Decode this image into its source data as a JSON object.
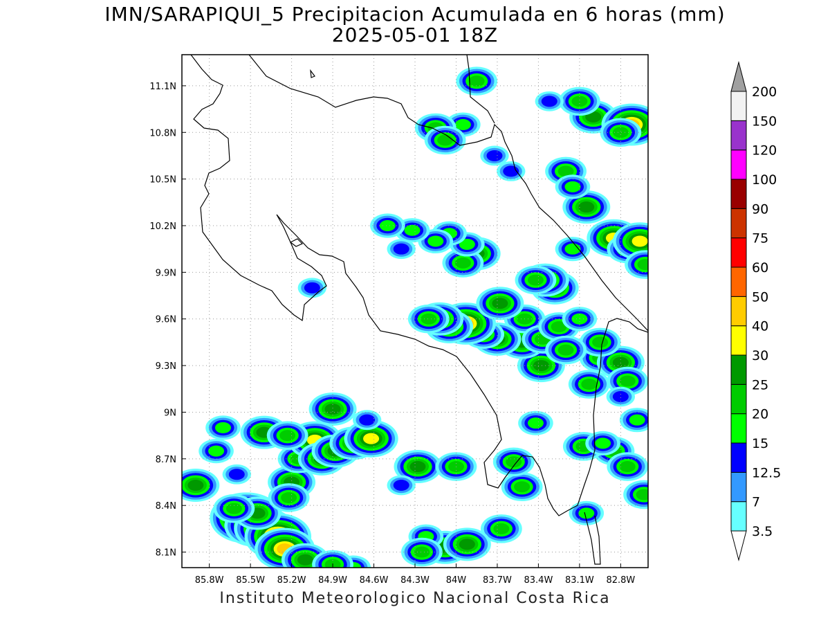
{
  "title_line1": "IMN/SARAPIQUI_5 Precipitacion Acumulada en 6 horas (mm)",
  "title_line2": "2025-05-01 18Z",
  "credit": "Instituto Meteorologico Nacional Costa Rica",
  "map": {
    "lon_range": [
      -86.0,
      -82.6
    ],
    "lat_range": [
      8.0,
      11.3
    ],
    "lon_ticks": [
      "85.8W",
      "85.5W",
      "85.2W",
      "84.9W",
      "84.6W",
      "84.3W",
      "84W",
      "83.7W",
      "83.4W",
      "83.1W",
      "82.8W"
    ],
    "lat_ticks": [
      "8.1N",
      "8.4N",
      "8.7N",
      "9N",
      "9.3N",
      "9.6N",
      "9.9N",
      "10.2N",
      "10.5N",
      "10.8N",
      "11.1N"
    ],
    "grid": true,
    "cells": [
      {
        "lon": -85.53,
        "lat": 8.32,
        "level": 10
      },
      {
        "lon": -85.47,
        "lat": 8.27,
        "level": 8
      },
      {
        "lon": -85.4,
        "lat": 8.25,
        "level": 8
      },
      {
        "lon": -85.3,
        "lat": 8.2,
        "level": 9
      },
      {
        "lon": -85.25,
        "lat": 8.12,
        "level": 8
      },
      {
        "lon": -85.1,
        "lat": 8.05,
        "level": 6
      },
      {
        "lon": -85.45,
        "lat": 8.35,
        "level": 6
      },
      {
        "lon": -85.62,
        "lat": 8.38,
        "level": 5
      },
      {
        "lon": -85.9,
        "lat": 8.53,
        "level": 6
      },
      {
        "lon": -85.2,
        "lat": 8.55,
        "level": 6
      },
      {
        "lon": -85.22,
        "lat": 8.45,
        "level": 5
      },
      {
        "lon": -85.15,
        "lat": 8.7,
        "level": 5
      },
      {
        "lon": -85.03,
        "lat": 8.82,
        "level": 7
      },
      {
        "lon": -84.98,
        "lat": 8.7,
        "level": 6
      },
      {
        "lon": -84.88,
        "lat": 8.75,
        "level": 6
      },
      {
        "lon": -84.75,
        "lat": 8.8,
        "level": 6
      },
      {
        "lon": -84.62,
        "lat": 8.83,
        "level": 7
      },
      {
        "lon": -84.9,
        "lat": 9.02,
        "level": 6
      },
      {
        "lon": -85.4,
        "lat": 8.87,
        "level": 6
      },
      {
        "lon": -85.23,
        "lat": 8.85,
        "level": 5
      },
      {
        "lon": -84.28,
        "lat": 8.65,
        "level": 6
      },
      {
        "lon": -84.0,
        "lat": 8.65,
        "level": 5
      },
      {
        "lon": -83.67,
        "lat": 8.25,
        "level": 5
      },
      {
        "lon": -84.08,
        "lat": 8.13,
        "level": 6
      },
      {
        "lon": -83.92,
        "lat": 8.15,
        "level": 6
      },
      {
        "lon": -84.22,
        "lat": 8.2,
        "level": 4
      },
      {
        "lon": -84.25,
        "lat": 8.1,
        "level": 5
      },
      {
        "lon": -83.52,
        "lat": 8.52,
        "level": 5
      },
      {
        "lon": -83.58,
        "lat": 8.68,
        "level": 5
      },
      {
        "lon": -82.85,
        "lat": 8.75,
        "level": 5
      },
      {
        "lon": -82.63,
        "lat": 8.47,
        "level": 5
      },
      {
        "lon": -82.75,
        "lat": 8.65,
        "level": 5
      },
      {
        "lon": -83.07,
        "lat": 8.78,
        "level": 5
      },
      {
        "lon": -82.93,
        "lat": 8.8,
        "level": 4
      },
      {
        "lon": -83.03,
        "lat": 9.18,
        "level": 5
      },
      {
        "lon": -82.95,
        "lat": 9.35,
        "level": 5
      },
      {
        "lon": -82.8,
        "lat": 9.32,
        "level": 6
      },
      {
        "lon": -82.75,
        "lat": 9.2,
        "level": 5
      },
      {
        "lon": -82.68,
        "lat": 8.95,
        "level": 4
      },
      {
        "lon": -83.38,
        "lat": 9.3,
        "level": 6
      },
      {
        "lon": -83.52,
        "lat": 9.45,
        "level": 6
      },
      {
        "lon": -83.5,
        "lat": 9.6,
        "level": 5
      },
      {
        "lon": -83.37,
        "lat": 9.47,
        "level": 5
      },
      {
        "lon": -83.25,
        "lat": 9.55,
        "level": 5
      },
      {
        "lon": -83.7,
        "lat": 9.47,
        "level": 6
      },
      {
        "lon": -83.8,
        "lat": 9.5,
        "level": 5
      },
      {
        "lon": -83.93,
        "lat": 9.57,
        "level": 8
      },
      {
        "lon": -84.05,
        "lat": 9.55,
        "level": 6
      },
      {
        "lon": -84.12,
        "lat": 9.6,
        "level": 6
      },
      {
        "lon": -84.2,
        "lat": 9.6,
        "level": 5
      },
      {
        "lon": -83.68,
        "lat": 9.7,
        "level": 6
      },
      {
        "lon": -83.28,
        "lat": 9.8,
        "level": 6
      },
      {
        "lon": -83.35,
        "lat": 9.85,
        "level": 6
      },
      {
        "lon": -83.42,
        "lat": 9.85,
        "level": 5
      },
      {
        "lon": -83.85,
        "lat": 10.02,
        "level": 6
      },
      {
        "lon": -83.95,
        "lat": 9.96,
        "level": 5
      },
      {
        "lon": -83.92,
        "lat": 10.08,
        "level": 4
      },
      {
        "lon": -84.05,
        "lat": 10.15,
        "level": 4
      },
      {
        "lon": -84.15,
        "lat": 10.1,
        "level": 4
      },
      {
        "lon": -84.32,
        "lat": 10.17,
        "level": 4
      },
      {
        "lon": -84.5,
        "lat": 10.2,
        "level": 4
      },
      {
        "lon": -84.4,
        "lat": 10.05,
        "level": 3
      },
      {
        "lon": -83.05,
        "lat": 10.32,
        "level": 6
      },
      {
        "lon": -82.85,
        "lat": 10.12,
        "level": 7
      },
      {
        "lon": -82.75,
        "lat": 10.05,
        "level": 5
      },
      {
        "lon": -82.66,
        "lat": 10.1,
        "level": 7
      },
      {
        "lon": -82.62,
        "lat": 9.95,
        "level": 5
      },
      {
        "lon": -83.2,
        "lat": 10.55,
        "level": 5
      },
      {
        "lon": -83.0,
        "lat": 10.9,
        "level": 6
      },
      {
        "lon": -83.1,
        "lat": 11.0,
        "level": 5
      },
      {
        "lon": -82.72,
        "lat": 10.85,
        "level": 8
      },
      {
        "lon": -82.8,
        "lat": 10.8,
        "level": 5
      },
      {
        "lon": -83.15,
        "lat": 10.45,
        "level": 4
      },
      {
        "lon": -83.15,
        "lat": 10.05,
        "level": 4
      },
      {
        "lon": -83.32,
        "lat": 11.0,
        "level": 3
      },
      {
        "lon": -83.95,
        "lat": 10.85,
        "level": 4
      },
      {
        "lon": -84.15,
        "lat": 10.83,
        "level": 5
      },
      {
        "lon": -84.08,
        "lat": 10.75,
        "level": 5
      },
      {
        "lon": -83.85,
        "lat": 11.13,
        "level": 5
      },
      {
        "lon": -83.6,
        "lat": 10.55,
        "level": 3
      },
      {
        "lon": -83.72,
        "lat": 10.65,
        "level": 3
      },
      {
        "lon": -85.05,
        "lat": 9.8,
        "level": 3
      },
      {
        "lon": -84.4,
        "lat": 8.53,
        "level": 3
      },
      {
        "lon": -82.95,
        "lat": 9.45,
        "level": 5
      },
      {
        "lon": -83.2,
        "lat": 9.4,
        "level": 5
      },
      {
        "lon": -83.1,
        "lat": 9.6,
        "level": 4
      },
      {
        "lon": -82.8,
        "lat": 9.1,
        "level": 3
      },
      {
        "lon": -85.6,
        "lat": 8.6,
        "level": 3
      },
      {
        "lon": -85.75,
        "lat": 8.75,
        "level": 4
      },
      {
        "lon": -84.65,
        "lat": 8.95,
        "level": 3
      },
      {
        "lon": -85.7,
        "lat": 8.9,
        "level": 4
      },
      {
        "lon": -83.42,
        "lat": 8.93,
        "level": 4
      },
      {
        "lon": -83.05,
        "lat": 8.35,
        "level": 4
      },
      {
        "lon": -84.75,
        "lat": 8.0,
        "level": 4
      },
      {
        "lon": -84.9,
        "lat": 8.02,
        "level": 5
      }
    ]
  },
  "colorbar": {
    "labels": [
      "3.5",
      "7",
      "12.5",
      "15",
      "20",
      "25",
      "30",
      "40",
      "50",
      "60",
      "75",
      "90",
      "100",
      "120",
      "150",
      "200"
    ],
    "colors": [
      "#66ffff",
      "#3399ff",
      "#0000ff",
      "#00ff00",
      "#00cc00",
      "#009900",
      "#ffff00",
      "#ffcc00",
      "#ff6600",
      "#ff0000",
      "#cc3300",
      "#990000",
      "#ff00ff",
      "#9933cc",
      "#f2f2f2",
      "#a0a0a0"
    ]
  }
}
